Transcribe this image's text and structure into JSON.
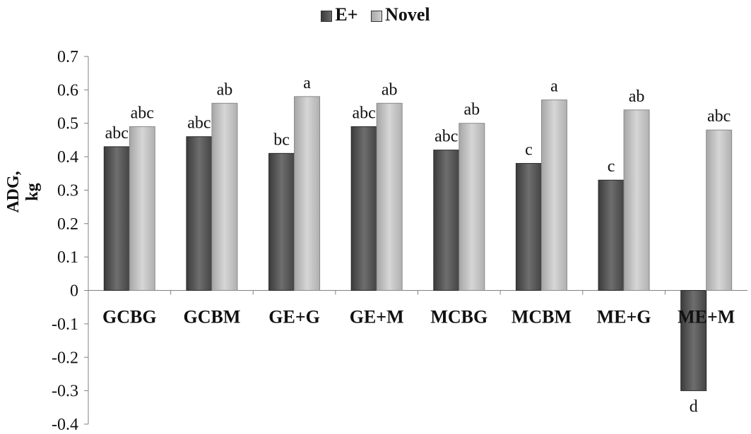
{
  "chart_data": {
    "type": "bar",
    "categories": [
      "GCBG",
      "GCBM",
      "GE+G",
      "GE+M",
      "MCBG",
      "MCBM",
      "ME+G",
      "ME+M"
    ],
    "series": [
      {
        "name": "E+",
        "values": [
          0.43,
          0.46,
          0.41,
          0.49,
          0.42,
          0.38,
          0.33,
          -0.3
        ],
        "labels": [
          "abc",
          "abc",
          "bc",
          "abc",
          "abc",
          "c",
          "c",
          "d"
        ],
        "color": "#555555"
      },
      {
        "name": "Novel",
        "values": [
          0.49,
          0.56,
          0.58,
          0.56,
          0.5,
          0.57,
          0.54,
          0.48
        ],
        "labels": [
          "abc",
          "ab",
          "a",
          "ab",
          "ab",
          "a",
          "ab",
          "abc"
        ],
        "color": "#bdbdbd"
      }
    ],
    "ylabel": "ADG, kg",
    "xlabel": "",
    "ylim": [
      -0.4,
      0.7
    ],
    "yticks": [
      "-0.4",
      "-0.3",
      "-0.2",
      "-0.1",
      "0",
      "0.1",
      "0.2",
      "0.3",
      "0.4",
      "0.5",
      "0.6",
      "0.7"
    ],
    "legend_position": "top-center",
    "grid": false
  }
}
